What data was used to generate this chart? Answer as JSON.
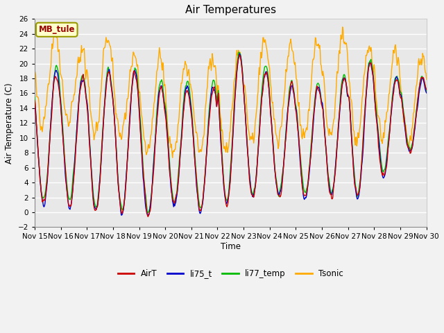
{
  "title": "Air Temperatures",
  "ylabel": "Air Temperature (C)",
  "xlabel": "Time",
  "ylim": [
    -2,
    26
  ],
  "xlim": [
    0,
    15
  ],
  "yticks": [
    -2,
    0,
    2,
    4,
    6,
    8,
    10,
    12,
    14,
    16,
    18,
    20,
    22,
    24,
    26
  ],
  "xtick_labels": [
    "Nov 15",
    "Nov 16",
    "Nov 17",
    "Nov 18",
    "Nov 19",
    "Nov 20",
    "Nov 21",
    "Nov 22",
    "Nov 23",
    "Nov 24",
    "Nov 25",
    "Nov 26",
    "Nov 27",
    "Nov 28",
    "Nov 29",
    "Nov 30"
  ],
  "series_colors": {
    "AirT": "#cc0000",
    "li75_t": "#0000cc",
    "li77_temp": "#00bb00",
    "Tsonic": "#ffaa00"
  },
  "legend_box_facecolor": "#ffffcc",
  "legend_box_text": "MB_tule",
  "legend_box_text_color": "#990000",
  "legend_box_edge_color": "#999900",
  "plot_bg_color": "#e8e8e8",
  "fig_bg_color": "#f2f2f2",
  "grid_color": "#ffffff",
  "line_width": 1.0
}
